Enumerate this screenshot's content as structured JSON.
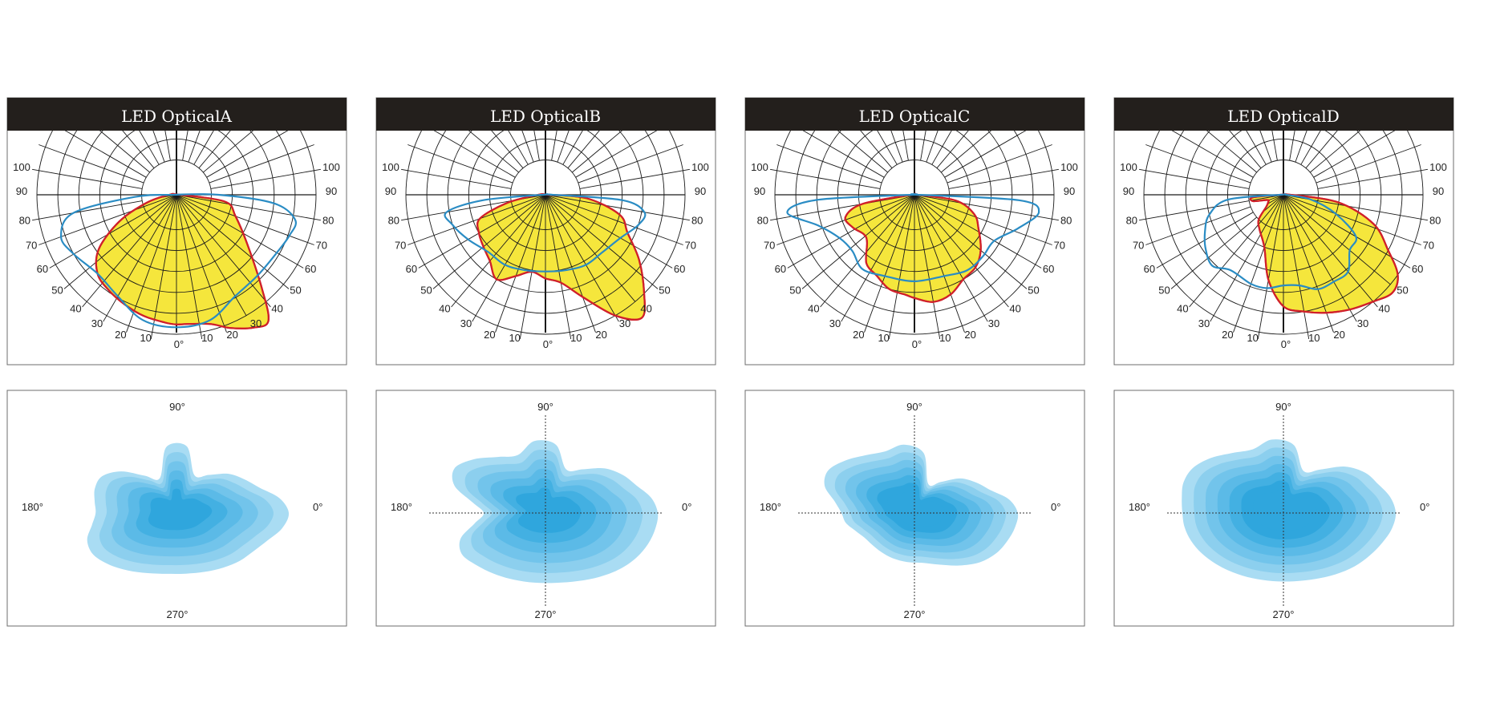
{
  "title": "",
  "colors": {
    "header_bg": "#231f1c",
    "header_text": "#ffffff",
    "grid": "#1a1a1a",
    "c0_fill": "#f5e63c",
    "c0_stroke": "#d0202a",
    "c90_stroke": "#2a8cc4",
    "iso_levels": [
      "#a9dcf3",
      "#8ccfee",
      "#72c4eb",
      "#5bbae7",
      "#43b0e2",
      "#2fa6dd"
    ]
  },
  "labels": {
    "deg0": "0°",
    "deg90": "90°",
    "deg180": "180°",
    "deg270": "270°"
  },
  "chart_data": [
    {
      "type": "polar",
      "title": "LED OpticalA",
      "angle_ticks": [
        "0°",
        "10",
        "20",
        "30",
        "40",
        "50",
        "60",
        "70",
        "80",
        "90",
        "100"
      ],
      "series": [
        {
          "name": "",
          "curve": "C0-C180",
          "points": [
            [
              -90,
              0.05
            ],
            [
              -75,
              0.22
            ],
            [
              -65,
              0.45
            ],
            [
              -55,
              0.68
            ],
            [
              -45,
              0.8
            ],
            [
              -35,
              0.84
            ],
            [
              -25,
              0.87
            ],
            [
              -15,
              0.9
            ],
            [
              -5,
              0.92
            ],
            [
              0,
              0.93
            ],
            [
              5,
              0.93
            ],
            [
              15,
              0.96
            ],
            [
              22,
              1.03
            ],
            [
              30,
              1.1
            ],
            [
              36,
              1.12
            ],
            [
              42,
              0.92
            ],
            [
              55,
              0.62
            ],
            [
              70,
              0.45
            ],
            [
              82,
              0.35
            ],
            [
              90,
              0.02
            ]
          ]
        },
        {
          "name": "",
          "curve": "C90-C270",
          "points": [
            [
              -90,
              0.02
            ],
            [
              -87,
              0.3
            ],
            [
              -80,
              0.75
            ],
            [
              -70,
              0.88
            ],
            [
              -60,
              0.85
            ],
            [
              -45,
              0.8
            ],
            [
              -30,
              0.84
            ],
            [
              -15,
              0.93
            ],
            [
              0,
              0.95
            ],
            [
              15,
              0.93
            ],
            [
              30,
              0.84
            ],
            [
              45,
              0.82
            ],
            [
              60,
              0.83
            ],
            [
              70,
              0.86
            ],
            [
              78,
              0.87
            ],
            [
              85,
              0.7
            ],
            [
              90,
              0.3
            ]
          ]
        }
      ]
    },
    {
      "type": "polar",
      "title": "LED OpticalB",
      "angle_ticks": [
        "0°",
        "10",
        "20",
        "30",
        "40",
        "50",
        "60",
        "70",
        "80",
        "90",
        "100"
      ],
      "series": [
        {
          "name": "",
          "curve": "C0-C180",
          "points": [
            [
              -90,
              0.05
            ],
            [
              -78,
              0.28
            ],
            [
              -70,
              0.5
            ],
            [
              -60,
              0.55
            ],
            [
              -50,
              0.58
            ],
            [
              -40,
              0.62
            ],
            [
              -30,
              0.7
            ],
            [
              -20,
              0.62
            ],
            [
              -10,
              0.56
            ],
            [
              0,
              0.6
            ],
            [
              10,
              0.64
            ],
            [
              20,
              0.78
            ],
            [
              30,
              1.0
            ],
            [
              38,
              1.12
            ],
            [
              45,
              1.0
            ],
            [
              55,
              0.82
            ],
            [
              65,
              0.65
            ],
            [
              75,
              0.55
            ],
            [
              85,
              0.3
            ],
            [
              90,
              0.02
            ]
          ]
        },
        {
          "name": "",
          "curve": "C90-C270",
          "points": [
            [
              -90,
              0.02
            ],
            [
              -85,
              0.45
            ],
            [
              -80,
              0.72
            ],
            [
              -72,
              0.7
            ],
            [
              -60,
              0.64
            ],
            [
              -45,
              0.58
            ],
            [
              -30,
              0.58
            ],
            [
              -15,
              0.56
            ],
            [
              0,
              0.55
            ],
            [
              15,
              0.56
            ],
            [
              30,
              0.58
            ],
            [
              45,
              0.58
            ],
            [
              60,
              0.62
            ],
            [
              72,
              0.7
            ],
            [
              80,
              0.72
            ],
            [
              86,
              0.55
            ],
            [
              90,
              0.05
            ]
          ]
        }
      ]
    },
    {
      "type": "polar",
      "title": "LED OpticalC",
      "angle_ticks": [
        "0°",
        "10",
        "20",
        "30",
        "40",
        "50",
        "60",
        "70",
        "80",
        "90",
        "100"
      ],
      "series": [
        {
          "name": "",
          "curve": "C0-C180",
          "points": [
            [
              -90,
              0.02
            ],
            [
              -80,
              0.38
            ],
            [
              -72,
              0.52
            ],
            [
              -62,
              0.5
            ],
            [
              -52,
              0.46
            ],
            [
              -45,
              0.48
            ],
            [
              -35,
              0.6
            ],
            [
              -25,
              0.64
            ],
            [
              -15,
              0.7
            ],
            [
              -5,
              0.72
            ],
            [
              0,
              0.74
            ],
            [
              10,
              0.78
            ],
            [
              20,
              0.76
            ],
            [
              30,
              0.7
            ],
            [
              40,
              0.68
            ],
            [
              50,
              0.62
            ],
            [
              62,
              0.52
            ],
            [
              72,
              0.45
            ],
            [
              82,
              0.3
            ],
            [
              90,
              0.02
            ]
          ]
        },
        {
          "name": "",
          "curve": "C90-C270",
          "points": [
            [
              -90,
              0.02
            ],
            [
              -87,
              0.7
            ],
            [
              -82,
              0.92
            ],
            [
              -72,
              0.72
            ],
            [
              -60,
              0.62
            ],
            [
              -48,
              0.6
            ],
            [
              -35,
              0.65
            ],
            [
              -20,
              0.62
            ],
            [
              0,
              0.62
            ],
            [
              20,
              0.62
            ],
            [
              35,
              0.66
            ],
            [
              48,
              0.66
            ],
            [
              60,
              0.66
            ],
            [
              72,
              0.78
            ],
            [
              82,
              0.9
            ],
            [
              87,
              0.75
            ],
            [
              90,
              0.02
            ]
          ]
        }
      ]
    },
    {
      "type": "polar",
      "title": "LED OpticalD",
      "angle_ticks": [
        "0°",
        "10",
        "20",
        "30",
        "40",
        "50",
        "60",
        "70",
        "80",
        "90",
        "100"
      ],
      "series": [
        {
          "name": "",
          "curve": "C0-C180",
          "points": [
            [
              -90,
              0.02
            ],
            [
              -85,
              0.22
            ],
            [
              -78,
              0.22
            ],
            [
              -72,
              0.12
            ],
            [
              -65,
              0.12
            ],
            [
              -55,
              0.15
            ],
            [
              -45,
              0.25
            ],
            [
              -35,
              0.3
            ],
            [
              -20,
              0.4
            ],
            [
              -10,
              0.62
            ],
            [
              0,
              0.8
            ],
            [
              10,
              0.85
            ],
            [
              20,
              0.9
            ],
            [
              30,
              0.95
            ],
            [
              40,
              1.0
            ],
            [
              48,
              1.05
            ],
            [
              55,
              1.0
            ],
            [
              62,
              0.85
            ],
            [
              72,
              0.68
            ],
            [
              82,
              0.4
            ],
            [
              90,
              0.05
            ]
          ]
        },
        {
          "name": "",
          "curve": "C90-C270",
          "points": [
            [
              -90,
              0.02
            ],
            [
              -85,
              0.4
            ],
            [
              -75,
              0.55
            ],
            [
              -65,
              0.62
            ],
            [
              -55,
              0.68
            ],
            [
              -45,
              0.72
            ],
            [
              -35,
              0.66
            ],
            [
              -20,
              0.68
            ],
            [
              -10,
              0.68
            ],
            [
              0,
              0.65
            ],
            [
              10,
              0.66
            ],
            [
              20,
              0.72
            ],
            [
              30,
              0.72
            ],
            [
              40,
              0.72
            ],
            [
              50,
              0.62
            ],
            [
              60,
              0.6
            ],
            [
              70,
              0.4
            ],
            [
              80,
              0.2
            ],
            [
              90,
              0.02
            ]
          ]
        }
      ]
    },
    {
      "type": "isolux",
      "levels": 6,
      "shape": [
        1.0,
        0.75,
        0.52,
        1.0,
        0.48,
        0.82,
        0.72,
        0.92,
        0.8,
        0.85
      ],
      "crosshair": false
    },
    {
      "type": "isolux",
      "levels": 6,
      "shape": [
        1.0,
        0.85,
        0.6,
        1.0,
        0.8,
        1.0,
        0.55,
        0.92,
        0.92,
        1.0
      ],
      "crosshair": true
    },
    {
      "type": "isolux",
      "levels": 7,
      "shape": [
        0.92,
        0.68,
        0.4,
        0.92,
        0.85,
        0.95,
        0.65,
        0.55,
        0.65,
        0.9
      ],
      "crosshair": true
    },
    {
      "type": "isolux",
      "levels": 7,
      "shape": [
        1.0,
        0.9,
        0.58,
        1.0,
        0.88,
        1.0,
        0.9,
        0.9,
        0.9,
        0.95
      ],
      "crosshair": true
    }
  ]
}
